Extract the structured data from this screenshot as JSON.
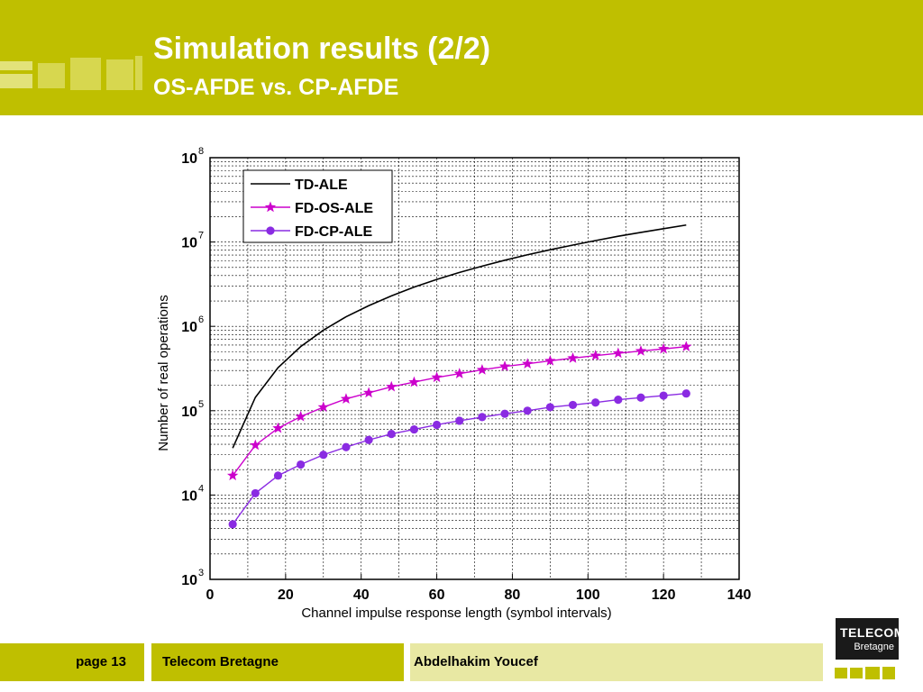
{
  "header": {
    "title": "Simulation results (2/2)",
    "subtitle": "OS-AFDE vs. CP-AFDE",
    "color": "#bfbf00"
  },
  "footer": {
    "page": "page 13",
    "institution": "Telecom Bretagne",
    "author": "Abdelhakim Youcef"
  },
  "logo": {
    "line1": "TELECOM",
    "line2": "Bretagne"
  },
  "chart_data": {
    "type": "line",
    "title": "",
    "xlabel": "Channel impulse response length (symbol intervals)",
    "ylabel": "Number of real operations",
    "xlim": [
      0,
      140
    ],
    "ylim": [
      1000,
      100000000
    ],
    "yscale": "log",
    "grid": true,
    "legend_position": "top-left",
    "x_ticks": [
      0,
      20,
      40,
      60,
      80,
      100,
      120,
      140
    ],
    "x_tick_labels": [
      "0",
      "20",
      "40",
      "60",
      "80",
      "100",
      "120",
      "140"
    ],
    "y_ticks": [
      {
        "base": "10",
        "exp": "3",
        "value": 1000
      },
      {
        "base": "10",
        "exp": "4",
        "value": 10000
      },
      {
        "base": "10",
        "exp": "5",
        "value": 100000
      },
      {
        "base": "10",
        "exp": "6",
        "value": 1000000
      },
      {
        "base": "10",
        "exp": "7",
        "value": 10000000
      },
      {
        "base": "10",
        "exp": "8",
        "value": 100000000
      }
    ],
    "series": [
      {
        "name": "TD-ALE",
        "color": "#000000",
        "marker": "none",
        "x": [
          6,
          12,
          18,
          24,
          30,
          36,
          42,
          48,
          54,
          60,
          66,
          72,
          78,
          84,
          90,
          96,
          102,
          108,
          114,
          120,
          126
        ],
        "y": [
          36000,
          144000,
          324000,
          576000,
          900000,
          1300000,
          1760000,
          2300000,
          2920000,
          3600000,
          4360000,
          5180000,
          6080000,
          7060000,
          8100000,
          9200000,
          10400000,
          11700000,
          13000000,
          14400000,
          15900000
        ]
      },
      {
        "name": "FD-OS-ALE",
        "color": "#cc00cc",
        "marker": "star",
        "x": [
          6,
          12,
          18,
          24,
          30,
          36,
          42,
          48,
          54,
          60,
          66,
          72,
          78,
          84,
          90,
          96,
          102,
          108,
          114,
          120,
          126
        ],
        "y": [
          17000,
          39000,
          62000,
          85000,
          110000,
          138000,
          163000,
          192000,
          218000,
          248000,
          275000,
          305000,
          335000,
          360000,
          390000,
          420000,
          450000,
          480000,
          510000,
          540000,
          575000
        ]
      },
      {
        "name": "FD-CP-ALE",
        "color": "#8a2be2",
        "marker": "circle",
        "x": [
          6,
          12,
          18,
          24,
          30,
          36,
          42,
          48,
          54,
          60,
          66,
          72,
          78,
          84,
          90,
          96,
          102,
          108,
          114,
          120,
          126
        ],
        "y": [
          4500,
          10500,
          17000,
          23000,
          30000,
          37000,
          45000,
          53000,
          60000,
          68000,
          76000,
          84000,
          92000,
          100000,
          110000,
          117000,
          125000,
          135000,
          143000,
          151000,
          160000
        ]
      }
    ]
  }
}
